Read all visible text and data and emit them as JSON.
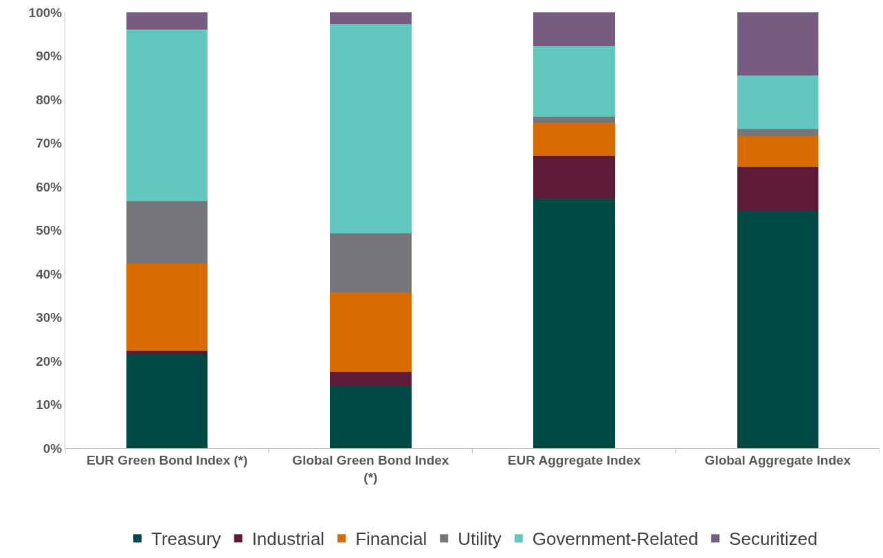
{
  "chart_data": {
    "type": "bar",
    "stacked": true,
    "categories": [
      "EUR Green Bond Index (*)",
      "Global Green Bond Index (*)",
      "EUR Aggregate Index",
      "Global Aggregate Index"
    ],
    "series": [
      {
        "name": "Treasury",
        "color": "#004843",
        "values": [
          21.6,
          14.4,
          57.4,
          54.5
        ]
      },
      {
        "name": "Industrial",
        "color": "#5e1b37",
        "values": [
          0.8,
          3.1,
          9.7,
          10.1
        ]
      },
      {
        "name": "Financial",
        "color": "#d66c00",
        "values": [
          19.9,
          18.3,
          7.6,
          7.1
        ]
      },
      {
        "name": "Utility",
        "color": "#76777b",
        "values": [
          14.4,
          13.5,
          1.3,
          1.5
        ]
      },
      {
        "name": "Government-Related",
        "color": "#63c7c0",
        "values": [
          39.3,
          48.1,
          16.3,
          12.3
        ]
      },
      {
        "name": "Securitized",
        "color": "#765c80",
        "values": [
          4.0,
          2.6,
          7.7,
          14.5
        ]
      }
    ],
    "ylim": [
      0,
      100
    ],
    "yticks": [
      {
        "value": 0,
        "label": "0%"
      },
      {
        "value": 10,
        "label": "10%"
      },
      {
        "value": 20,
        "label": "20%"
      },
      {
        "value": 30,
        "label": "30%"
      },
      {
        "value": 40,
        "label": "40%"
      },
      {
        "value": 50,
        "label": "50%"
      },
      {
        "value": 60,
        "label": "60%"
      },
      {
        "value": 70,
        "label": "70%"
      },
      {
        "value": 80,
        "label": "80%"
      },
      {
        "value": 90,
        "label": "90%"
      },
      {
        "value": 100,
        "label": "100%"
      }
    ],
    "legend": "bottom"
  }
}
